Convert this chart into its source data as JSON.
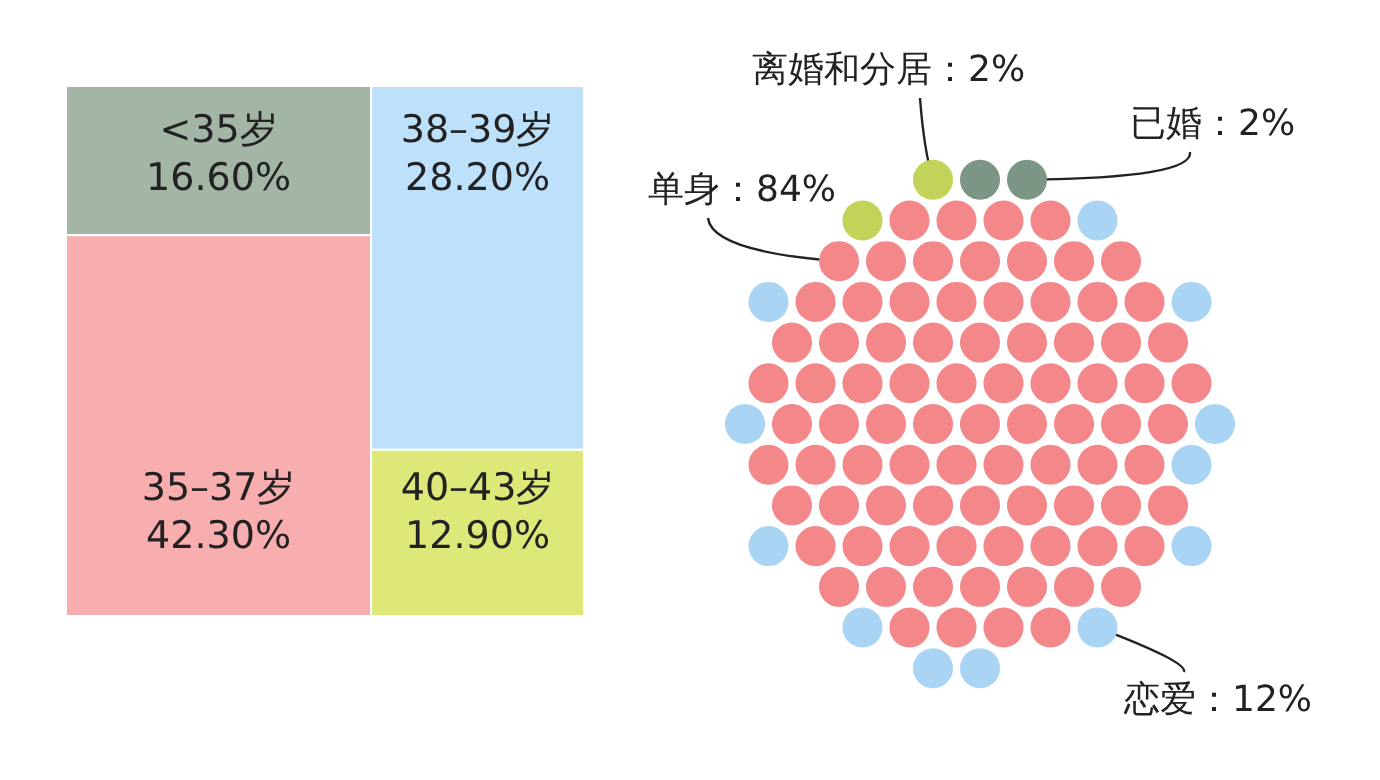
{
  "chart_data": [
    {
      "type": "other",
      "categories": [
        "<35岁",
        "35–37岁",
        "38–39岁",
        "40–43岁"
      ],
      "values": [
        16.6,
        42.3,
        28.2,
        12.9
      ],
      "value_labels": [
        "16.60%",
        "42.30%",
        "28.20%",
        "12.90%"
      ],
      "colors": [
        "#a3b5a5",
        "#f8aeae",
        "#bde0fb",
        "#dde878"
      ]
    },
    {
      "type": "other",
      "categories": [
        "单身",
        "恋爱",
        "离婚和分居",
        "已婚"
      ],
      "values": [
        84,
        12,
        2,
        2
      ],
      "value_labels": [
        "84%",
        "12%",
        "2%",
        "2%"
      ],
      "annotations": [
        "：",
        "：",
        "：",
        "："
      ],
      "colors": [
        "#f4878a",
        "#a9d4f3",
        "#c3d35a",
        "#7d9585"
      ]
    }
  ]
}
